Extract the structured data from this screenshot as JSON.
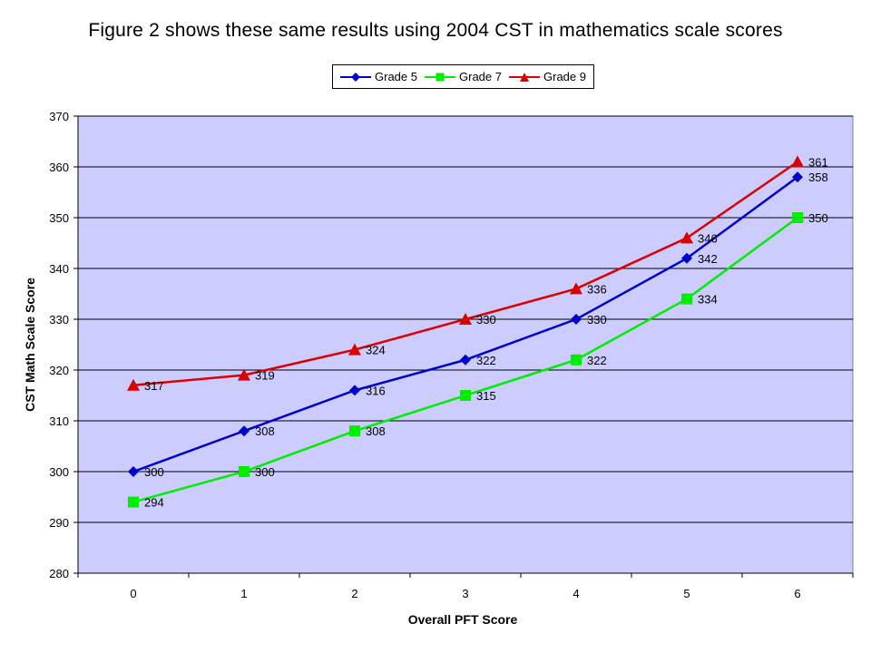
{
  "chart_data": {
    "type": "line",
    "title": "Figure 2 shows these same results using 2004 CST in mathematics scale scores",
    "xlabel": "Overall PFT Score",
    "ylabel": "CST Math Scale Score",
    "categories": [
      "0",
      "1",
      "2",
      "3",
      "4",
      "5",
      "6"
    ],
    "ylim": [
      280,
      370
    ],
    "yticks": [
      280,
      290,
      300,
      310,
      320,
      330,
      340,
      350,
      360,
      370
    ],
    "grid": true,
    "legend_position": "top-center",
    "plot_background": "#ccccff",
    "series": [
      {
        "name": "Grade 5",
        "color": "#0000cc",
        "marker": "diamond",
        "values": [
          300,
          308,
          316,
          322,
          330,
          342,
          358
        ]
      },
      {
        "name": "Grade 7",
        "color": "#00ee00",
        "marker": "square",
        "values": [
          294,
          300,
          308,
          315,
          322,
          334,
          350
        ]
      },
      {
        "name": "Grade 9",
        "color": "#dd0000",
        "marker": "triangle",
        "values": [
          317,
          319,
          324,
          330,
          336,
          346,
          361
        ]
      }
    ]
  }
}
